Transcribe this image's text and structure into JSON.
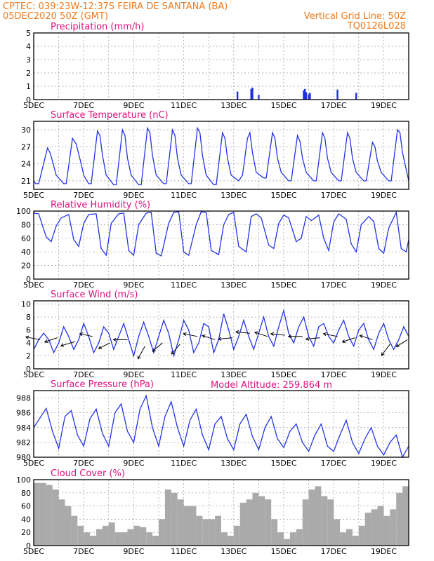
{
  "header": {
    "line1_left": "CPTEC:   039:23W-12:37S   FEIRA DE SANTANA (BA)",
    "line2_left": "05DEC2020 50Z (GMT)",
    "line2_right": "Vertical Grid Line: 50Z",
    "line3_right": "TQ0126L028"
  },
  "model_altitude": "Model Altitude: 259.864 m",
  "colors": {
    "header": "#f07a1c",
    "panel_title": "#e0107e",
    "series": "#2433e6",
    "precip": "#1f2fe6",
    "cloud": "#aaaaaa"
  },
  "chart_data": [
    {
      "type": "bar",
      "title": "Precipitation (mm/h)",
      "x_range": [
        "05DEC",
        "20DEC"
      ],
      "x_ticks": [
        "5DEC",
        "7DEC",
        "9DEC",
        "11DEC",
        "13DEC",
        "15DEC",
        "17DEC",
        "19DEC"
      ],
      "ylim": [
        0,
        5
      ],
      "y_ticks": [
        "0",
        "1",
        "2",
        "3",
        "4",
        "5"
      ],
      "grid": true,
      "x_days": [
        13.15,
        13.7,
        13.75,
        14.0,
        15.8,
        15.85,
        15.9,
        16.0,
        16.05,
        17.15,
        17.9
      ],
      "values": [
        0.6,
        0.8,
        0.9,
        0.35,
        0.7,
        0.8,
        0.55,
        0.4,
        0.5,
        0.75,
        0.5
      ]
    },
    {
      "type": "line",
      "title": "Surface Temperature (nC)",
      "ylim": [
        19.5,
        31.5
      ],
      "y_ticks": [
        "21",
        "24",
        "27",
        "30"
      ],
      "grid": true,
      "x_days": [
        5.0,
        5.08,
        5.2,
        5.55,
        5.65,
        5.75,
        5.9,
        6.2,
        6.3,
        6.55,
        6.7,
        6.9,
        7.0,
        7.2,
        7.3,
        7.55,
        7.65,
        7.75,
        7.9,
        8.2,
        8.3,
        8.55,
        8.65,
        8.75,
        8.9,
        9.2,
        9.3,
        9.55,
        9.65,
        9.75,
        9.9,
        10.2,
        10.3,
        10.55,
        10.65,
        10.75,
        10.9,
        11.2,
        11.3,
        11.55,
        11.65,
        11.75,
        11.9,
        12.2,
        12.3,
        12.55,
        12.65,
        12.75,
        12.9,
        13.2,
        13.35,
        13.55,
        13.65,
        13.75,
        13.9,
        14.2,
        14.3,
        14.55,
        14.65,
        14.75,
        14.9,
        15.2,
        15.3,
        15.55,
        15.65,
        15.75,
        15.9,
        16.2,
        16.3,
        16.55,
        16.65,
        16.75,
        16.9,
        17.2,
        17.3,
        17.55,
        17.65,
        17.75,
        17.9,
        18.2,
        18.3,
        18.55,
        18.65,
        18.75,
        18.9,
        19.2,
        19.3,
        19.55,
        19.65,
        19.75,
        19.9,
        20.0
      ],
      "values": [
        21.0,
        20.5,
        20.5,
        26.8,
        26.0,
        24.5,
        22.0,
        20.5,
        20.5,
        28.5,
        27.5,
        24.0,
        22.0,
        20.5,
        20.5,
        29.8,
        29.0,
        25.5,
        22.0,
        20.3,
        20.3,
        30.0,
        29.0,
        25.0,
        22.0,
        20.3,
        20.3,
        30.3,
        29.5,
        25.5,
        22.0,
        20.5,
        20.5,
        30.0,
        29.0,
        25.0,
        22.0,
        20.5,
        20.5,
        30.3,
        29.5,
        25.5,
        22.0,
        20.3,
        20.3,
        29.5,
        28.5,
        25.0,
        22.0,
        21.0,
        22.0,
        28.5,
        29.5,
        26.0,
        22.5,
        21.5,
        21.5,
        29.5,
        28.5,
        25.0,
        22.5,
        21.0,
        21.0,
        29.0,
        28.0,
        25.0,
        22.5,
        21.0,
        21.0,
        29.5,
        28.5,
        25.0,
        22.5,
        21.0,
        21.0,
        29.5,
        28.5,
        25.0,
        22.5,
        21.0,
        21.0,
        27.8,
        27.0,
        24.5,
        22.5,
        21.0,
        21.0,
        30.0,
        29.5,
        26.0,
        23.0,
        21.0
      ]
    },
    {
      "type": "line",
      "title": "Relative Humidity (%)",
      "ylim": [
        0,
        100
      ],
      "y_ticks": [
        "0",
        "20",
        "40",
        "60",
        "80",
        "100"
      ],
      "grid": true,
      "x_days": [
        5.0,
        5.2,
        5.5,
        5.7,
        5.9,
        6.1,
        6.4,
        6.6,
        6.8,
        7.0,
        7.2,
        7.5,
        7.7,
        7.9,
        8.1,
        8.4,
        8.6,
        8.8,
        9.0,
        9.2,
        9.5,
        9.7,
        9.9,
        10.1,
        10.4,
        10.6,
        10.8,
        11.0,
        11.2,
        11.5,
        11.7,
        11.9,
        12.1,
        12.4,
        12.6,
        12.8,
        13.0,
        13.2,
        13.5,
        13.7,
        13.9,
        14.1,
        14.4,
        14.6,
        14.8,
        15.0,
        15.2,
        15.5,
        15.7,
        15.9,
        16.1,
        16.4,
        16.6,
        16.8,
        17.0,
        17.2,
        17.5,
        17.7,
        17.9,
        18.1,
        18.4,
        18.6,
        18.8,
        19.0,
        19.2,
        19.5,
        19.7,
        19.9,
        20.0
      ],
      "values": [
        97,
        96,
        62,
        55,
        78,
        90,
        95,
        58,
        48,
        82,
        95,
        96,
        45,
        35,
        82,
        96,
        97,
        42,
        35,
        80,
        97,
        98,
        38,
        34,
        82,
        98,
        99,
        40,
        35,
        80,
        99,
        98,
        42,
        36,
        80,
        95,
        98,
        48,
        40,
        92,
        96,
        90,
        50,
        45,
        82,
        94,
        90,
        55,
        60,
        92,
        86,
        94,
        60,
        42,
        84,
        96,
        88,
        52,
        40,
        80,
        92,
        85,
        45,
        38,
        75,
        98,
        45,
        40,
        58
      ]
    },
    {
      "type": "line",
      "title": "Surface Wind (m/s)",
      "ylim": [
        0,
        10.5
      ],
      "y_ticks": [
        "0",
        "2",
        "4",
        "6",
        "8",
        "10"
      ],
      "grid": true,
      "x_days": [
        5.0,
        5.2,
        5.4,
        5.6,
        5.8,
        6.0,
        6.2,
        6.4,
        6.6,
        6.8,
        7.0,
        7.2,
        7.4,
        7.6,
        7.8,
        8.0,
        8.2,
        8.4,
        8.6,
        8.8,
        9.0,
        9.2,
        9.4,
        9.6,
        9.8,
        10.0,
        10.2,
        10.4,
        10.6,
        10.8,
        11.0,
        11.2,
        11.4,
        11.6,
        11.8,
        12.0,
        12.2,
        12.4,
        12.6,
        12.8,
        13.0,
        13.2,
        13.4,
        13.6,
        13.8,
        14.0,
        14.2,
        14.4,
        14.6,
        14.8,
        15.0,
        15.2,
        15.4,
        15.6,
        15.8,
        16.0,
        16.2,
        16.4,
        16.6,
        16.8,
        17.0,
        17.2,
        17.4,
        17.6,
        17.8,
        18.0,
        18.2,
        18.4,
        18.6,
        18.8,
        19.0,
        19.2,
        19.4,
        19.6,
        19.8,
        20.0
      ],
      "values": [
        3.0,
        4.5,
        5.5,
        4.5,
        2.5,
        4.0,
        6.5,
        5.0,
        3.0,
        4.5,
        7.0,
        5.0,
        2.5,
        4.0,
        6.5,
        5.5,
        3.0,
        5.0,
        7.0,
        4.5,
        2.0,
        5.0,
        7.2,
        5.0,
        2.5,
        5.0,
        7.5,
        5.5,
        2.0,
        4.5,
        7.5,
        6.0,
        2.5,
        4.0,
        7.0,
        6.5,
        2.5,
        4.5,
        8.5,
        6.0,
        3.0,
        5.0,
        7.5,
        5.0,
        3.0,
        5.5,
        8.0,
        5.0,
        3.5,
        6.5,
        9.0,
        5.5,
        4.0,
        6.5,
        8.0,
        5.0,
        3.5,
        6.5,
        7.0,
        5.0,
        4.0,
        6.0,
        7.5,
        5.0,
        3.5,
        6.0,
        7.0,
        4.5,
        3.0,
        5.5,
        7.0,
        4.5,
        3.0,
        4.5,
        6.5,
        5.0
      ],
      "arrows": {
        "x_days": [
          5.25,
          5.95,
          6.65,
          7.35,
          8.05,
          8.75,
          9.45,
          10.15,
          10.85,
          11.55,
          12.25,
          12.95,
          13.65,
          14.35,
          15.05,
          15.75,
          16.45,
          17.15,
          17.85,
          18.55,
          19.25,
          19.95
        ],
        "speed": [
          4.5,
          4.8,
          4.2,
          5.0,
          4.0,
          4.5,
          3.5,
          4.0,
          3.8,
          5.0,
          4.5,
          4.8,
          5.5,
          5.0,
          5.2,
          5.0,
          4.8,
          5.0,
          4.8,
          4.5,
          3.8,
          4.5
        ],
        "u": [
          -1.0,
          -0.9,
          -1.0,
          -0.9,
          -0.8,
          -1.0,
          -0.5,
          -0.7,
          -0.6,
          -1.0,
          -0.9,
          -1.0,
          -1.0,
          -0.9,
          -1.0,
          -1.0,
          -1.0,
          -1.0,
          -0.9,
          -0.9,
          -0.6,
          -0.8
        ],
        "v": [
          0.2,
          -0.3,
          -0.3,
          0.2,
          -0.4,
          0.0,
          -0.9,
          -0.6,
          -0.7,
          0.2,
          0.3,
          -0.1,
          0.1,
          0.3,
          0.1,
          0.0,
          -0.1,
          0.2,
          -0.3,
          0.3,
          -0.8,
          -0.5
        ]
      }
    },
    {
      "type": "line",
      "title": "Surface Pressure (hPa)",
      "ylim": [
        980,
        989
      ],
      "y_ticks": [
        "980",
        "982",
        "984",
        "986",
        "988"
      ],
      "grid": true,
      "x_days": [
        5.0,
        5.25,
        5.5,
        5.75,
        6.0,
        6.25,
        6.5,
        6.75,
        7.0,
        7.25,
        7.5,
        7.75,
        8.0,
        8.25,
        8.5,
        8.75,
        9.0,
        9.25,
        9.5,
        9.75,
        10.0,
        10.25,
        10.5,
        10.75,
        11.0,
        11.25,
        11.5,
        11.75,
        12.0,
        12.25,
        12.5,
        12.75,
        13.0,
        13.25,
        13.5,
        13.75,
        14.0,
        14.25,
        14.5,
        14.75,
        15.0,
        15.25,
        15.5,
        15.75,
        16.0,
        16.25,
        16.5,
        16.75,
        17.0,
        17.25,
        17.5,
        17.75,
        18.0,
        18.25,
        18.5,
        18.75,
        19.0,
        19.25,
        19.5,
        19.75,
        20.0
      ],
      "values": [
        984.0,
        985.3,
        986.6,
        983.5,
        981.2,
        985.5,
        986.3,
        983.0,
        981.5,
        985.2,
        986.5,
        983.2,
        981.5,
        986.0,
        987.2,
        983.5,
        982.0,
        986.5,
        988.3,
        984.0,
        981.5,
        985.5,
        987.5,
        984.0,
        981.5,
        985.0,
        986.5,
        983.0,
        981.0,
        984.5,
        985.5,
        982.5,
        981.0,
        984.5,
        985.8,
        982.8,
        981.0,
        984.0,
        985.5,
        982.5,
        981.3,
        983.5,
        984.5,
        982.0,
        980.8,
        983.0,
        984.5,
        981.5,
        980.8,
        983.0,
        985.0,
        982.0,
        980.5,
        982.5,
        984.0,
        981.5,
        980.3,
        982.0,
        983.0,
        980.0,
        981.5
      ]
    },
    {
      "type": "bar",
      "title": "Cloud Cover (%)",
      "ylim": [
        0,
        100
      ],
      "y_ticks": [
        "0",
        "20",
        "40",
        "60",
        "80",
        "100"
      ],
      "grid": true,
      "x_days": [
        5.0,
        5.25,
        5.5,
        5.75,
        6.0,
        6.25,
        6.5,
        6.75,
        7.0,
        7.25,
        7.5,
        7.75,
        8.0,
        8.25,
        8.5,
        8.75,
        9.0,
        9.25,
        9.5,
        9.75,
        10.0,
        10.25,
        10.5,
        10.75,
        11.0,
        11.25,
        11.5,
        11.75,
        12.0,
        12.25,
        12.5,
        12.75,
        13.0,
        13.25,
        13.5,
        13.75,
        14.0,
        14.25,
        14.5,
        14.75,
        15.0,
        15.25,
        15.5,
        15.75,
        16.0,
        16.25,
        16.5,
        16.75,
        17.0,
        17.25,
        17.5,
        17.75,
        18.0,
        18.25,
        18.5,
        18.75,
        19.0,
        19.25,
        19.5,
        19.75,
        20.0
      ],
      "values": [
        95,
        95,
        92,
        85,
        70,
        60,
        45,
        30,
        20,
        15,
        25,
        30,
        35,
        20,
        20,
        25,
        30,
        28,
        20,
        15,
        40,
        85,
        80,
        70,
        60,
        60,
        45,
        40,
        40,
        45,
        20,
        15,
        30,
        65,
        70,
        80,
        75,
        70,
        40,
        20,
        10,
        20,
        25,
        70,
        85,
        90,
        75,
        70,
        40,
        20,
        25,
        15,
        30,
        50,
        55,
        60,
        45,
        55,
        80,
        90,
        95
      ]
    }
  ]
}
